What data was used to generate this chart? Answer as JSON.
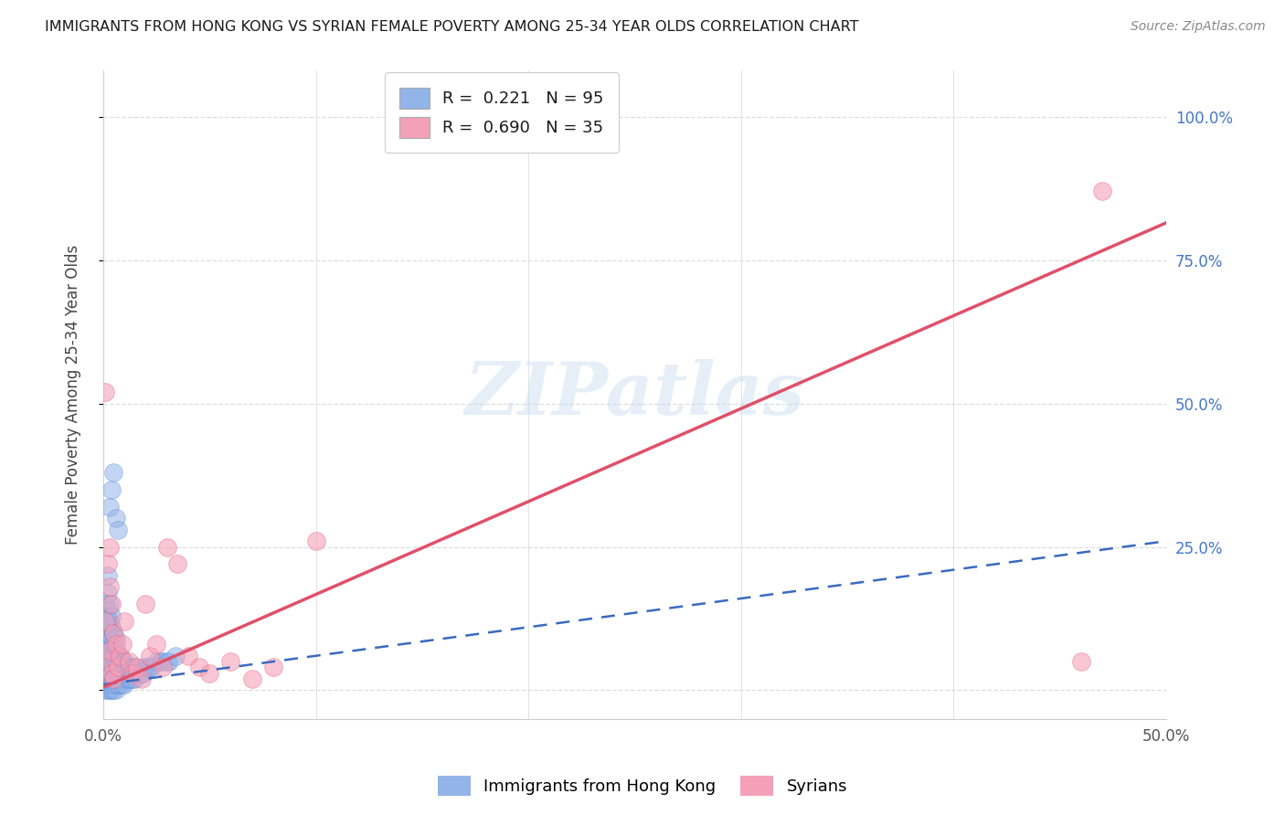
{
  "title": "IMMIGRANTS FROM HONG KONG VS SYRIAN FEMALE POVERTY AMONG 25-34 YEAR OLDS CORRELATION CHART",
  "source": "Source: ZipAtlas.com",
  "ylabel": "Female Poverty Among 25-34 Year Olds",
  "xlim": [
    0.0,
    0.5
  ],
  "ylim": [
    -0.05,
    1.08
  ],
  "xticks": [
    0.0,
    0.1,
    0.2,
    0.3,
    0.4,
    0.5
  ],
  "xticklabels_show": [
    "0.0%",
    "",
    "",
    "",
    "",
    "50.0%"
  ],
  "yticks": [
    0.0,
    0.25,
    0.5,
    0.75,
    1.0
  ],
  "yticklabels_right": [
    "",
    "25.0%",
    "50.0%",
    "75.0%",
    "100.0%"
  ],
  "hk_color": "#92b4e8",
  "syrian_color": "#f4a0b8",
  "hk_edge_color": "#5b8dd9",
  "syrian_edge_color": "#e8607a",
  "hk_R": 0.221,
  "hk_N": 95,
  "syrian_R": 0.69,
  "syrian_N": 35,
  "hk_trend_color": "#3a6abf",
  "syrian_trend_color": "#e0506a",
  "hk_trend_slope": 0.5,
  "hk_trend_intercept": 0.01,
  "syrian_trend_slope": 1.62,
  "syrian_trend_intercept": 0.005,
  "watermark_text": "ZIPatlas",
  "grid_color": "#dddddd",
  "hk_points_x": [
    0.0,
    0.001,
    0.001,
    0.001,
    0.001,
    0.001,
    0.001,
    0.001,
    0.001,
    0.002,
    0.002,
    0.002,
    0.002,
    0.002,
    0.002,
    0.002,
    0.002,
    0.002,
    0.002,
    0.002,
    0.002,
    0.003,
    0.003,
    0.003,
    0.003,
    0.003,
    0.003,
    0.003,
    0.003,
    0.003,
    0.003,
    0.004,
    0.004,
    0.004,
    0.004,
    0.004,
    0.004,
    0.004,
    0.004,
    0.005,
    0.005,
    0.005,
    0.005,
    0.005,
    0.005,
    0.005,
    0.006,
    0.006,
    0.006,
    0.006,
    0.006,
    0.006,
    0.007,
    0.007,
    0.007,
    0.007,
    0.008,
    0.008,
    0.008,
    0.008,
    0.009,
    0.009,
    0.009,
    0.01,
    0.01,
    0.01,
    0.011,
    0.011,
    0.012,
    0.012,
    0.013,
    0.013,
    0.014,
    0.014,
    0.015,
    0.015,
    0.016,
    0.017,
    0.018,
    0.019,
    0.02,
    0.021,
    0.022,
    0.023,
    0.025,
    0.027,
    0.028,
    0.03,
    0.031,
    0.034,
    0.003,
    0.004,
    0.005,
    0.006,
    0.007
  ],
  "hk_points_y": [
    0.05,
    0.0,
    0.02,
    0.03,
    0.05,
    0.07,
    0.09,
    0.12,
    0.15,
    0.0,
    0.01,
    0.02,
    0.03,
    0.05,
    0.06,
    0.08,
    0.1,
    0.12,
    0.14,
    0.17,
    0.2,
    0.0,
    0.01,
    0.02,
    0.03,
    0.04,
    0.06,
    0.08,
    0.1,
    0.12,
    0.15,
    0.0,
    0.01,
    0.03,
    0.05,
    0.07,
    0.09,
    0.11,
    0.13,
    0.0,
    0.01,
    0.02,
    0.04,
    0.06,
    0.08,
    0.1,
    0.0,
    0.01,
    0.03,
    0.05,
    0.07,
    0.09,
    0.01,
    0.02,
    0.04,
    0.06,
    0.01,
    0.02,
    0.04,
    0.06,
    0.01,
    0.03,
    0.05,
    0.01,
    0.03,
    0.05,
    0.02,
    0.04,
    0.02,
    0.04,
    0.02,
    0.04,
    0.02,
    0.04,
    0.02,
    0.04,
    0.03,
    0.03,
    0.03,
    0.03,
    0.04,
    0.04,
    0.04,
    0.04,
    0.05,
    0.05,
    0.05,
    0.05,
    0.05,
    0.06,
    0.32,
    0.35,
    0.38,
    0.3,
    0.28
  ],
  "syrian_points_x": [
    0.001,
    0.001,
    0.002,
    0.002,
    0.003,
    0.003,
    0.003,
    0.004,
    0.004,
    0.005,
    0.005,
    0.006,
    0.007,
    0.008,
    0.009,
    0.01,
    0.012,
    0.014,
    0.016,
    0.018,
    0.02,
    0.022,
    0.025,
    0.028,
    0.03,
    0.035,
    0.04,
    0.045,
    0.05,
    0.06,
    0.07,
    0.08,
    0.1,
    0.46,
    0.47
  ],
  "syrian_points_y": [
    0.52,
    0.12,
    0.22,
    0.05,
    0.18,
    0.25,
    0.07,
    0.15,
    0.03,
    0.1,
    0.02,
    0.08,
    0.04,
    0.06,
    0.08,
    0.12,
    0.05,
    0.03,
    0.04,
    0.02,
    0.15,
    0.06,
    0.08,
    0.04,
    0.25,
    0.22,
    0.06,
    0.04,
    0.03,
    0.05,
    0.02,
    0.04,
    0.26,
    0.05,
    0.87
  ]
}
